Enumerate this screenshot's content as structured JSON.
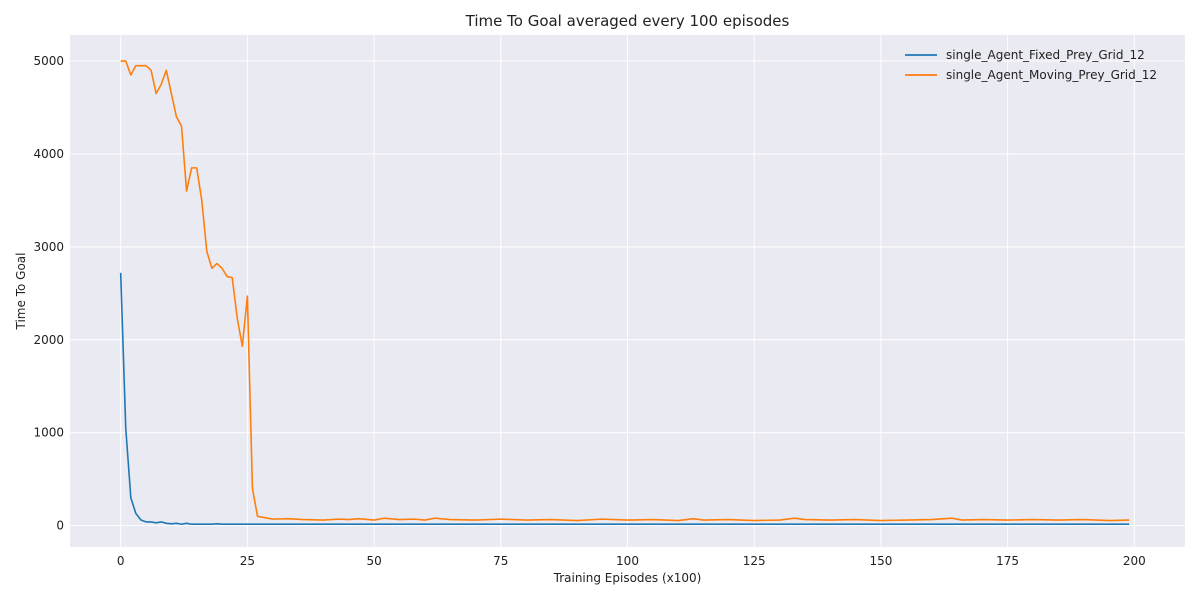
{
  "chart_data": {
    "type": "line",
    "title": "Time To Goal averaged every 100 episodes",
    "xlabel": "Training Episodes (x100)",
    "ylabel": "Time To Goal",
    "xlim": [
      -10,
      210
    ],
    "ylim": [
      -230,
      5280
    ],
    "xticks": [
      0,
      25,
      50,
      75,
      100,
      125,
      150,
      175,
      200
    ],
    "yticks": [
      0,
      1000,
      2000,
      3000,
      4000,
      5000
    ],
    "grid": true,
    "legend_position": "upper-right",
    "background_color": "#EAEAF2",
    "series": [
      {
        "name": "single_Agent_Fixed_Prey_Grid_12",
        "color": "#1F77B4",
        "x": [
          0,
          1,
          2,
          3,
          4,
          5,
          6,
          7,
          8,
          9,
          10,
          11,
          12,
          13,
          14,
          15,
          16,
          17,
          18,
          19,
          20,
          22,
          25,
          30,
          40,
          50,
          60,
          70,
          80,
          90,
          100,
          110,
          120,
          130,
          140,
          150,
          160,
          170,
          180,
          190,
          199
        ],
        "y": [
          2720,
          1050,
          300,
          130,
          60,
          40,
          40,
          30,
          40,
          25,
          20,
          25,
          15,
          25,
          15,
          15,
          15,
          15,
          15,
          20,
          15,
          15,
          15,
          15,
          15,
          15,
          15,
          15,
          15,
          15,
          15,
          15,
          15,
          15,
          15,
          15,
          15,
          15,
          15,
          15,
          15
        ]
      },
      {
        "name": "single_Agent_Moving_Prey_Grid_12",
        "color": "#FF7F0E",
        "x": [
          0,
          1,
          2,
          3,
          4,
          5,
          6,
          7,
          8,
          9,
          10,
          11,
          12,
          13,
          14,
          15,
          16,
          17,
          18,
          19,
          20,
          21,
          22,
          23,
          24,
          25,
          26,
          27,
          28,
          29,
          30,
          33,
          36,
          40,
          43,
          45,
          47,
          50,
          52,
          55,
          58,
          60,
          62,
          65,
          70,
          75,
          80,
          85,
          90,
          95,
          100,
          105,
          110,
          113,
          115,
          120,
          125,
          130,
          133,
          135,
          140,
          145,
          150,
          155,
          160,
          164,
          166,
          170,
          175,
          180,
          185,
          190,
          195,
          199
        ],
        "y": [
          5000,
          5000,
          4850,
          4950,
          4950,
          4950,
          4900,
          4650,
          4750,
          4900,
          4650,
          4400,
          4300,
          3600,
          3850,
          3850,
          3500,
          2950,
          2770,
          2820,
          2770,
          2680,
          2670,
          2230,
          1930,
          2470,
          400,
          100,
          90,
          80,
          70,
          75,
          65,
          60,
          70,
          65,
          75,
          60,
          80,
          65,
          70,
          60,
          80,
          65,
          60,
          70,
          60,
          65,
          55,
          70,
          60,
          65,
          55,
          75,
          60,
          65,
          55,
          60,
          80,
          65,
          60,
          65,
          55,
          60,
          65,
          80,
          60,
          65,
          60,
          65,
          60,
          65,
          55,
          60
        ]
      }
    ]
  }
}
